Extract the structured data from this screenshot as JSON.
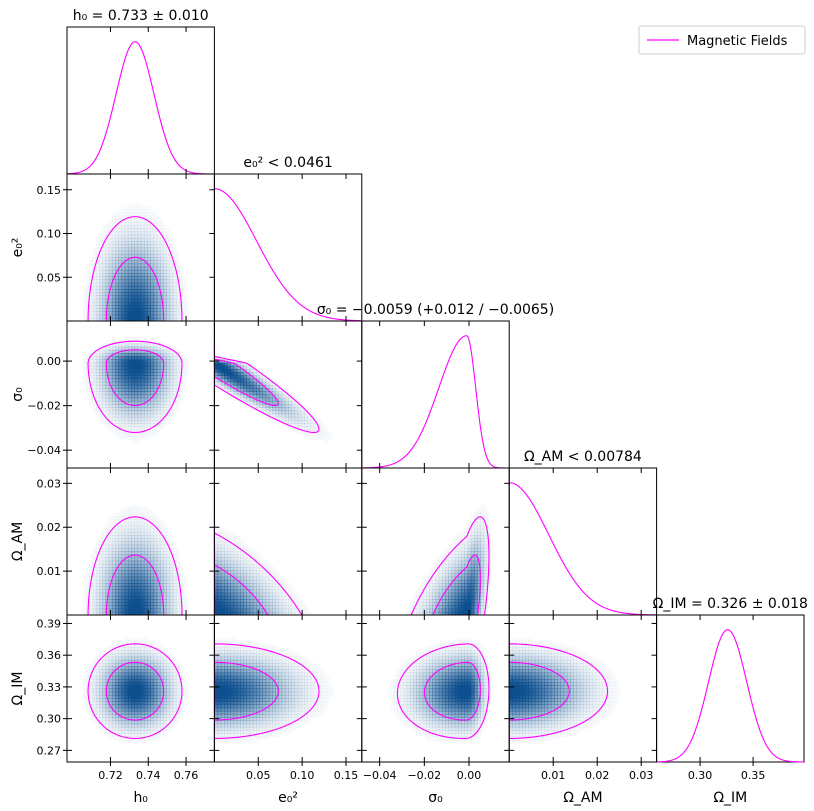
{
  "chart_data": {
    "type": "corner",
    "title": "",
    "legend": {
      "entries": [
        {
          "label": "Magnetic Fields",
          "color": "#ff00ff"
        }
      ],
      "placement": "top-right"
    },
    "line_color": "#ff00ff",
    "fill_color": "#0d4f8e",
    "parameters": [
      {
        "key": "h0",
        "label": "h₀",
        "title": "h₀ = 0.733 ± 0.010",
        "range": [
          0.697,
          0.775
        ],
        "ticks": [
          0.72,
          0.74,
          0.76
        ],
        "tick_labels": [
          "0.72",
          "0.74",
          "0.76"
        ],
        "posterior": {
          "kind": "gauss",
          "mean": 0.733,
          "sigma": 0.01
        }
      },
      {
        "key": "e02",
        "label": "e₀²",
        "title": "e₀² < 0.0461",
        "range": [
          0.0,
          0.168
        ],
        "ticks": [
          0.05,
          0.1,
          0.15
        ],
        "tick_labels": [
          "0.05",
          "0.10",
          "0.15"
        ],
        "left_ticks": [
          0.05,
          0.1,
          0.15
        ],
        "left_tick_labels": [
          "0.05",
          "0.10",
          "0.15"
        ],
        "posterior": {
          "kind": "halfgauss",
          "mean": 0.0,
          "sigma": 0.048
        }
      },
      {
        "key": "sigma0",
        "label": "σ₀",
        "title": "σ₀ = −0.0059 (+0.012 / −0.0065)",
        "range": [
          -0.048,
          0.018
        ],
        "ticks": [
          -0.04,
          -0.02,
          0.0
        ],
        "tick_labels": [
          "−0.04",
          "−0.02",
          "0.00"
        ],
        "left_ticks": [
          -0.04,
          -0.02,
          0.0
        ],
        "left_tick_labels": [
          "−0.04",
          "−0.02",
          "0.00"
        ],
        "posterior": {
          "kind": "skew",
          "mode": -0.001,
          "sigma_left": 0.0125,
          "sigma_right": 0.004
        }
      },
      {
        "key": "omegaAM",
        "label": "Ω_AM",
        "title": "Ω_AM < 0.00784",
        "range": [
          0.0,
          0.0335
        ],
        "ticks": [
          0.01,
          0.02,
          0.03
        ],
        "tick_labels": [
          "0.01",
          "0.02",
          "0.03"
        ],
        "left_ticks": [
          0.01,
          0.02,
          0.03
        ],
        "left_tick_labels": [
          "0.01",
          "0.02",
          "0.03"
        ],
        "posterior": {
          "kind": "halfgauss",
          "mean": 0.0,
          "sigma": 0.009
        }
      },
      {
        "key": "omegaIM",
        "label": "Ω_IM",
        "title": "Ω_IM = 0.326 ± 0.018",
        "range": [
          0.259,
          0.398
        ],
        "ticks": [
          0.3,
          0.35
        ],
        "tick_labels": [
          "0.30",
          "0.35"
        ],
        "left_ticks": [
          0.27,
          0.3,
          0.33,
          0.36,
          0.39
        ],
        "left_tick_labels": [
          "0.27",
          "0.30",
          "0.33",
          "0.36",
          "0.39"
        ],
        "posterior": {
          "kind": "gauss",
          "mean": 0.326,
          "sigma": 0.018
        }
      }
    ],
    "pairs": [
      {
        "x": "h0",
        "y": "e02",
        "rho": 0.0,
        "trunc_y": true
      },
      {
        "x": "h0",
        "y": "sigma0",
        "rho": 0.0
      },
      {
        "x": "h0",
        "y": "omegaAM",
        "rho": 0.0,
        "trunc_y": true
      },
      {
        "x": "h0",
        "y": "omegaIM",
        "rho": 0.0
      },
      {
        "x": "e02",
        "y": "sigma0",
        "rho": -0.95,
        "trunc_x": true
      },
      {
        "x": "e02",
        "y": "omegaAM",
        "rho": -0.55,
        "trunc_x": true,
        "trunc_y": true
      },
      {
        "x": "e02",
        "y": "omegaIM",
        "rho": 0.0,
        "trunc_x": true
      },
      {
        "x": "sigma0",
        "y": "omegaAM",
        "rho": 0.6,
        "trunc_y": true
      },
      {
        "x": "sigma0",
        "y": "omegaIM",
        "rho": 0.05
      },
      {
        "x": "omegaAM",
        "y": "omegaIM",
        "rho": 0.0,
        "trunc_x": true
      }
    ],
    "contour_levels": [
      "68%",
      "95%"
    ]
  }
}
